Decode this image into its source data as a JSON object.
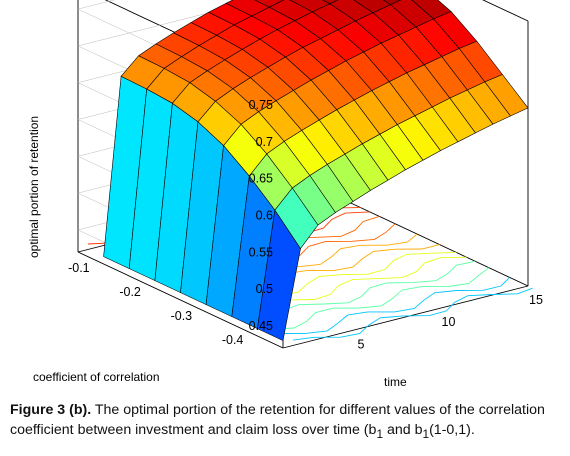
{
  "chart_data": {
    "type": "surface3d",
    "zlabel": "optimal portion of retention",
    "xlabel": "time",
    "ylabel": "coefficient of correlation",
    "x_ticks": [
      "5",
      "10",
      "15"
    ],
    "y_ticks": [
      "-0.1",
      "-0.2",
      "-0.3",
      "-0.4"
    ],
    "z_ticks": [
      "0.45",
      "0.5",
      "0.55",
      "0.6",
      "0.65",
      "0.7",
      "0.75"
    ],
    "x_range": [
      1,
      15
    ],
    "y_range": [
      -0.45,
      -0.05
    ],
    "z_range": [
      0.42,
      0.78
    ],
    "time": [
      1,
      2,
      3,
      4,
      5,
      6,
      7,
      8,
      9,
      10,
      11,
      12,
      13,
      14,
      15
    ],
    "correlation": [
      -0.45,
      -0.4,
      -0.35,
      -0.3,
      -0.25,
      -0.2,
      -0.15,
      -0.1
    ],
    "retention_rows": [
      [
        0.43,
        0.549,
        0.575,
        0.586,
        0.595,
        0.604,
        0.612,
        0.62,
        0.627,
        0.634,
        0.64,
        0.646,
        0.652,
        0.657,
        0.662
      ],
      [
        0.43,
        0.585,
        0.609,
        0.62,
        0.629,
        0.637,
        0.645,
        0.652,
        0.659,
        0.665,
        0.671,
        0.677,
        0.682,
        0.687,
        0.691
      ],
      [
        0.43,
        0.615,
        0.639,
        0.65,
        0.659,
        0.667,
        0.675,
        0.682,
        0.689,
        0.695,
        0.701,
        0.706,
        0.711,
        0.716,
        0.72
      ],
      [
        0.43,
        0.64,
        0.663,
        0.674,
        0.683,
        0.691,
        0.699,
        0.706,
        0.713,
        0.719,
        0.725,
        0.73,
        0.735,
        0.74,
        0.744
      ],
      [
        0.43,
        0.656,
        0.678,
        0.689,
        0.698,
        0.706,
        0.714,
        0.721,
        0.727,
        0.733,
        0.739,
        0.744,
        0.749,
        0.754,
        0.758
      ],
      [
        0.43,
        0.665,
        0.687,
        0.697,
        0.706,
        0.714,
        0.722,
        0.729,
        0.735,
        0.741,
        0.746,
        0.751,
        0.756,
        0.761,
        0.765
      ],
      [
        0.43,
        0.668,
        0.69,
        0.7,
        0.709,
        0.717,
        0.725,
        0.731,
        0.737,
        0.743,
        0.748,
        0.753,
        0.758,
        0.763,
        0.767
      ],
      [
        0.43,
        0.669,
        0.691,
        0.701,
        0.71,
        0.718,
        0.726,
        0.732,
        0.738,
        0.744,
        0.749,
        0.754,
        0.759,
        0.764,
        0.768
      ]
    ]
  },
  "caption": {
    "label": "Figure 3 (b).",
    "text": "The optimal portion of the retention for different values of the correlation coefficient between investment and claim loss over time (b",
    "sub1": "1",
    "mid": " and b",
    "sub2": "1",
    "end": "(1-0,1)."
  }
}
